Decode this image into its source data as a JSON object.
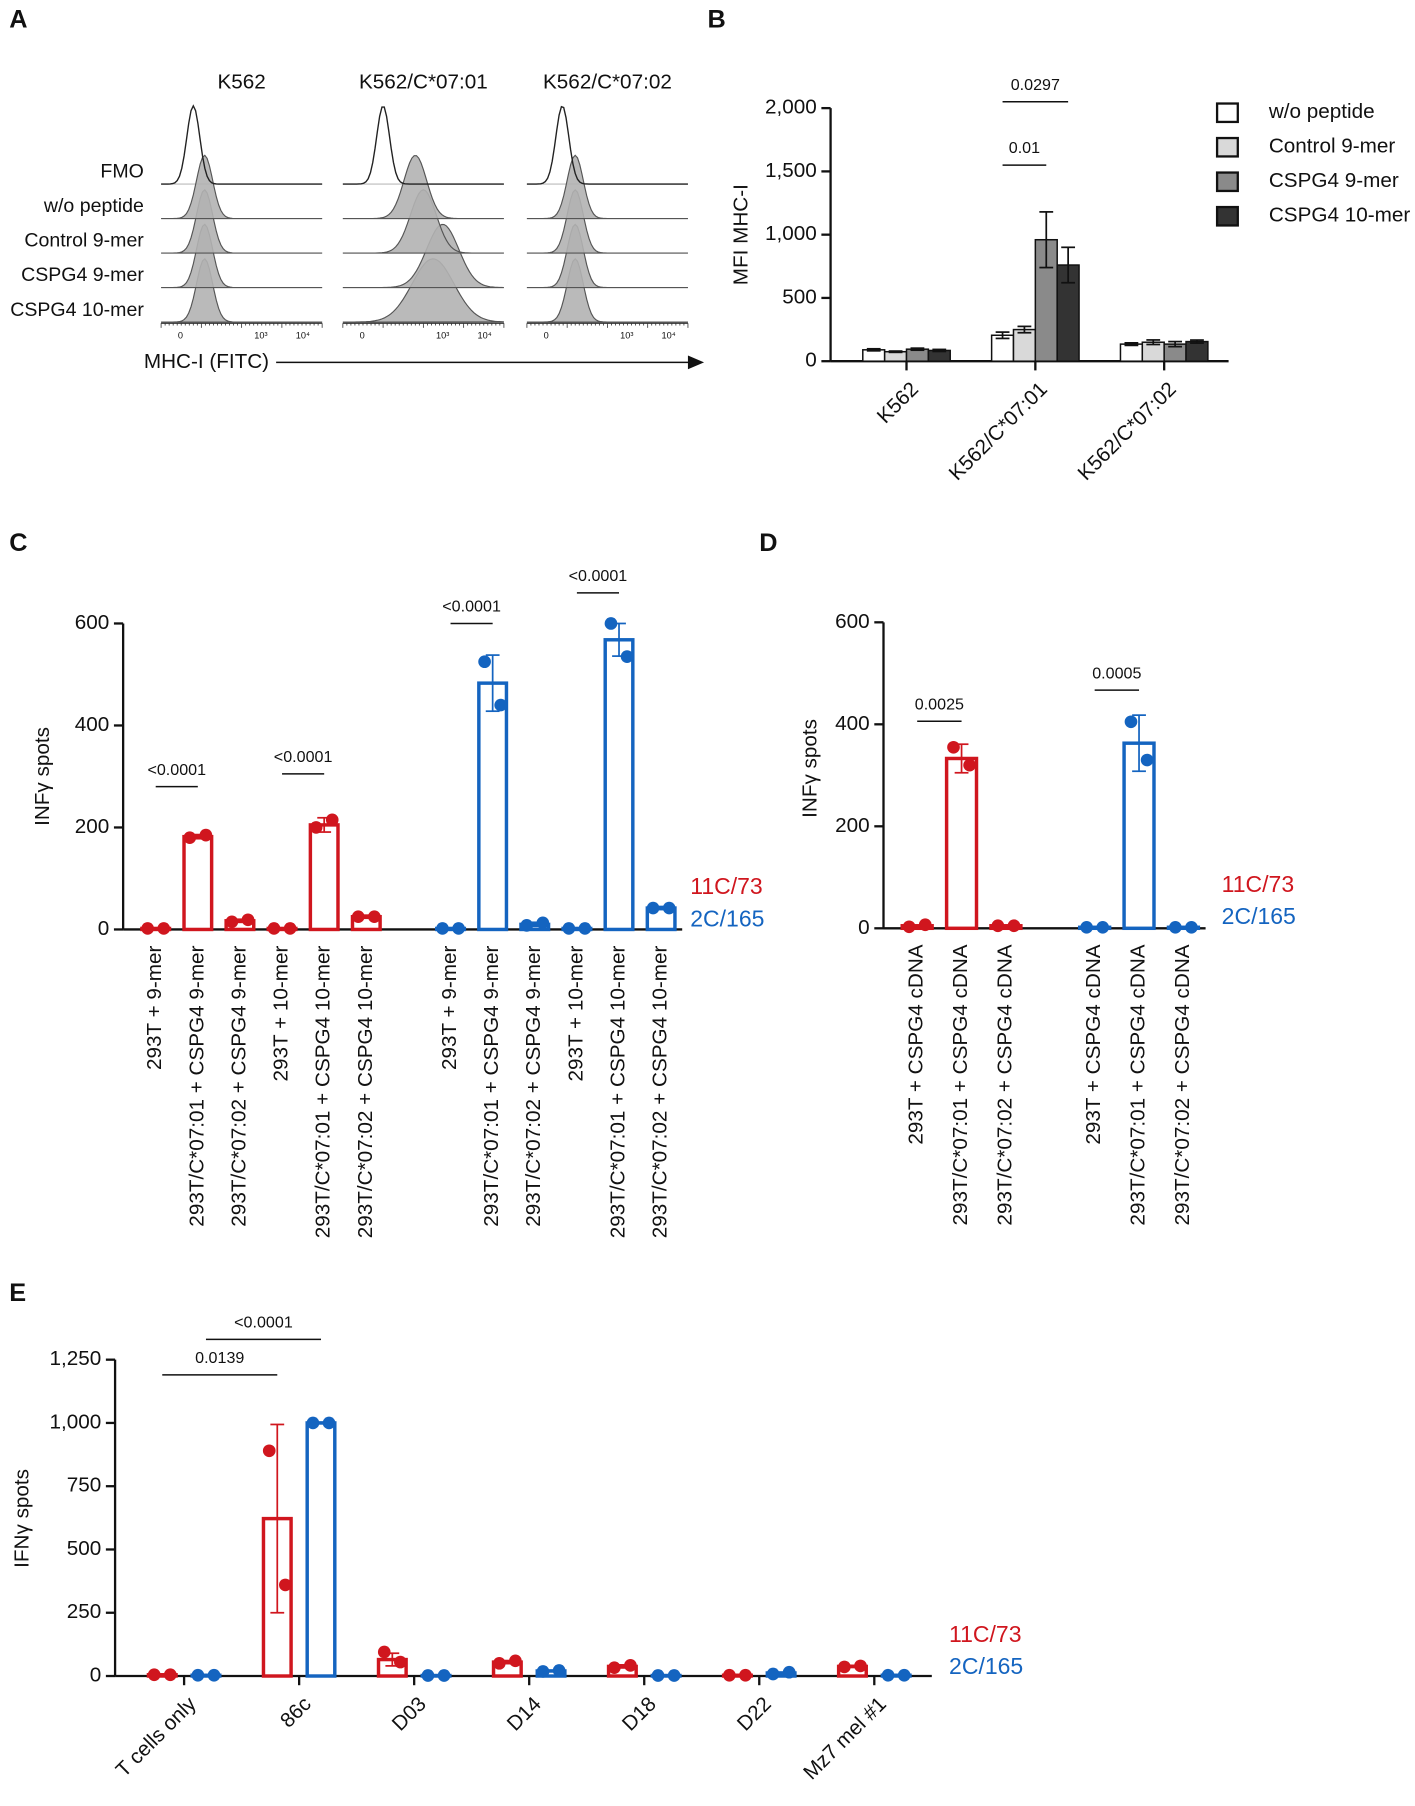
{
  "chart_data": [
    {
      "type": "histogram_grid",
      "panel": "A",
      "columns": [
        "K562",
        "K562/C*07:01",
        "K562/C*07:02"
      ],
      "rows": [
        "FMO",
        "w/o peptide",
        "Control 9-mer",
        "CSPG4 9-mer",
        "CSPG4 10-mer"
      ],
      "xlabel": "MHC-I (FITC)",
      "xtick_labels": [
        "0",
        "10³",
        "10⁴"
      ]
    },
    {
      "type": "bar",
      "panel": "B",
      "ylabel": "MFI MHC-I",
      "bar_style": "filled",
      "legend": "box",
      "categories": [
        "K562",
        "K562/C*07:01",
        "K562/C*07:02"
      ],
      "series": [
        {
          "name": "w/o peptide",
          "color": "#ffffff",
          "values": [
            90,
            205,
            135
          ],
          "errors": [
            8,
            25,
            10
          ]
        },
        {
          "name": "Control 9-mer",
          "color": "#d9d9d9",
          "values": [
            75,
            250,
            150
          ],
          "errors": [
            5,
            25,
            18
          ]
        },
        {
          "name": "CSPG4 9-mer",
          "color": "#8a8a8a",
          "values": [
            95,
            960,
            135
          ],
          "errors": [
            8,
            220,
            20
          ]
        },
        {
          "name": "CSPG4 10-mer",
          "color": "#333333",
          "values": [
            85,
            760,
            155
          ],
          "errors": [
            8,
            140,
            12
          ]
        }
      ],
      "ylim": [
        0,
        2000
      ],
      "yticks": [
        0,
        500,
        {
          "value": 1000,
          "label": "1,000"
        },
        {
          "value": 1500,
          "label": "1,500"
        },
        {
          "value": 2000,
          "label": "2,000"
        }
      ],
      "annotations": [
        {
          "text": "0.01",
          "from": [
            0,
            1
          ],
          "to": [
            2,
            1
          ],
          "y": 1550
        },
        {
          "text": "0.0297",
          "from": [
            0,
            1
          ],
          "to": [
            3,
            1
          ],
          "y": 2050
        }
      ]
    },
    {
      "type": "bar",
      "panel": "C",
      "ylabel": "INFγ spots",
      "bar_style": "outline",
      "legend": "text",
      "categories": [
        "293T + 9-mer",
        "293T/C*07:01 + CSPG4 9-mer",
        "293T/C*07:02 + CSPG4 9-mer",
        "293T + 10-mer",
        "293T/C*07:01 + CSPG4 10-mer",
        "293T/C*07:02 + CSPG4 10-mer",
        null,
        "293T + 9-mer",
        "293T/C*07:01 + CSPG4 9-mer",
        "293T/C*07:02 + CSPG4 9-mer",
        "293T + 10-mer",
        "293T/C*07:01 + CSPG4 10-mer",
        "293T/C*07:02 + CSPG4 10-mer"
      ],
      "series": [
        {
          "name": "11C/73",
          "color": "#d0161e",
          "values": [
            2,
            182,
            17,
            2,
            205,
            25,
            null,
            null,
            null,
            null,
            null,
            null,
            null
          ],
          "errors": [
            0,
            4,
            3,
            0,
            14,
            3,
            null,
            null,
            null,
            null,
            null,
            null,
            null
          ],
          "points": [
            [
              2,
              2
            ],
            [
              180,
              185
            ],
            [
              15,
              19
            ],
            [
              2,
              2
            ],
            [
              200,
              215
            ],
            [
              25,
              25
            ],
            null,
            null,
            null,
            null,
            null,
            null,
            null
          ]
        },
        {
          "name": "2C/165",
          "color": "#1464c0",
          "values": [
            null,
            null,
            null,
            null,
            null,
            null,
            null,
            2,
            483,
            10,
            2,
            568,
            42
          ],
          "errors": [
            null,
            null,
            null,
            null,
            null,
            null,
            null,
            0,
            55,
            4,
            0,
            32,
            3
          ],
          "points": [
            null,
            null,
            null,
            null,
            null,
            null,
            null,
            [
              2,
              2
            ],
            [
              525,
              440
            ],
            [
              8,
              13
            ],
            [
              2,
              2
            ],
            [
              600,
              535
            ],
            [
              42,
              42
            ]
          ]
        }
      ],
      "ylim": [
        0,
        600
      ],
      "yticks": [
        0,
        200,
        400,
        600
      ],
      "annotations": [
        {
          "text": "<0.0001",
          "from": [
            0,
            0
          ],
          "to": [
            0,
            1
          ],
          "y": 280
        },
        {
          "text": "<0.0001",
          "from": [
            0,
            3
          ],
          "to": [
            0,
            4
          ],
          "y": 305
        },
        {
          "text": "<0.0001",
          "from": [
            1,
            7
          ],
          "to": [
            1,
            8
          ],
          "y": 600
        },
        {
          "text": "<0.0001",
          "from": [
            1,
            10
          ],
          "to": [
            1,
            11
          ],
          "y": 660
        }
      ]
    },
    {
      "type": "bar",
      "panel": "D",
      "ylabel": "INFγ spots",
      "bar_style": "outline",
      "legend": "text",
      "categories": [
        "293T + CSPG4 cDNA",
        "293T/C*07:01 + CSPG4 cDNA",
        "293T/C*07:02 + CSPG4 cDNA",
        null,
        "293T + CSPG4 cDNA",
        "293T/C*07:01 + CSPG4 cDNA",
        "293T/C*07:02 + CSPG4 cDNA"
      ],
      "series": [
        {
          "name": "11C/73",
          "color": "#d0161e",
          "values": [
            5,
            333,
            5,
            null,
            null,
            null,
            null
          ],
          "errors": [
            0,
            28,
            0,
            null,
            null,
            null,
            null
          ],
          "points": [
            [
              3,
              7
            ],
            [
              355,
              320
            ],
            [
              5,
              5
            ],
            null,
            null,
            null,
            null
          ]
        },
        {
          "name": "2C/165",
          "color": "#1464c0",
          "values": [
            null,
            null,
            null,
            null,
            2,
            363,
            2
          ],
          "errors": [
            null,
            null,
            null,
            null,
            0,
            55,
            0
          ],
          "points": [
            null,
            null,
            null,
            null,
            [
              2,
              2
            ],
            [
              405,
              330
            ],
            [
              2,
              2
            ]
          ]
        }
      ],
      "ylim": [
        0,
        600
      ],
      "yticks": [
        0,
        200,
        400,
        600
      ],
      "annotations": [
        {
          "text": "0.0025",
          "from": [
            0,
            0
          ],
          "to": [
            0,
            1
          ],
          "y": 406
        },
        {
          "text": "0.0005",
          "from": [
            1,
            4
          ],
          "to": [
            1,
            5
          ],
          "y": 467
        }
      ]
    },
    {
      "type": "bar",
      "panel": "E",
      "ylabel": "IFNγ spots",
      "bar_style": "outline",
      "legend": "text",
      "xrotate": true,
      "categories": [
        "T cells only",
        "86c",
        "D03",
        "D14",
        "D18",
        "D22",
        "Mz7 mel #1"
      ],
      "series": [
        {
          "name": "11C/73",
          "color": "#d0161e",
          "values": [
            5,
            622,
            65,
            55,
            38,
            3,
            38
          ],
          "errors": [
            0,
            372,
            25,
            6,
            6,
            0,
            4
          ],
          "points": [
            [
              5,
              5
            ],
            [
              890,
              360
            ],
            [
              95,
              55
            ],
            [
              50,
              60
            ],
            [
              33,
              42
            ],
            [
              3,
              3
            ],
            [
              36,
              40
            ]
          ]
        },
        {
          "name": "2C/165",
          "color": "#1464c0",
          "values": [
            3,
            1000,
            2,
            20,
            2,
            12,
            3
          ],
          "errors": [
            0,
            3,
            0,
            3,
            0,
            3,
            0
          ],
          "points": [
            [
              3,
              3
            ],
            [
              1000,
              1000
            ],
            [
              2,
              2
            ],
            [
              18,
              22
            ],
            [
              2,
              2
            ],
            [
              8,
              15
            ],
            [
              3,
              3
            ]
          ]
        }
      ],
      "ylim": [
        0,
        1250
      ],
      "yticks": [
        0,
        250,
        500,
        750,
        {
          "value": 1000,
          "label": "1,000"
        },
        {
          "value": 1250,
          "label": "1,250"
        }
      ],
      "annotations": [
        {
          "text": "0.0139",
          "from": [
            0,
            0
          ],
          "to": [
            0,
            1
          ],
          "y": 1190
        },
        {
          "text": "<0.0001",
          "from": [
            1,
            0
          ],
          "to": [
            1,
            1
          ],
          "y": 1330
        }
      ]
    }
  ]
}
